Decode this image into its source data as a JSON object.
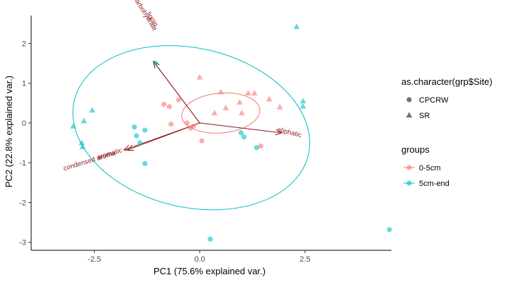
{
  "chart_data": {
    "type": "scatter",
    "xlabel": "PC1 (75.6% explained var.)",
    "ylabel": "PC2 (22.8% explained var.)",
    "xlim": [
      -4.0,
      4.55
    ],
    "ylim": [
      -3.2,
      2.7
    ],
    "x_ticks": [
      -2.5,
      0.0,
      2.5
    ],
    "x_tick_labels": [
      "-2.5",
      "0.0",
      "2.5"
    ],
    "y_ticks": [
      -3,
      -2,
      -1,
      0,
      1,
      2
    ],
    "y_tick_labels": [
      "-3",
      "-2",
      "-1",
      "0",
      "1",
      "2"
    ],
    "grid": false,
    "legend_placement": "right",
    "shape_legend": {
      "title": "as.character(grp$Site)",
      "items": [
        {
          "label": "CPCRW",
          "shape": "circle"
        },
        {
          "label": "SR",
          "shape": "triangle"
        }
      ]
    },
    "group_legend": {
      "title": "groups",
      "items": [
        {
          "label": "0-5cm",
          "color": "#F8766D"
        },
        {
          "label": "5cm-end",
          "color": "#00BFC4"
        }
      ]
    },
    "series": [
      {
        "name": "0-5cm",
        "color": "#F8766D",
        "points": [
          {
            "x": -0.85,
            "y": 0.47,
            "shape": "circle"
          },
          {
            "x": -0.72,
            "y": 0.41,
            "shape": "circle"
          },
          {
            "x": -0.5,
            "y": 0.58,
            "shape": "circle"
          },
          {
            "x": -0.68,
            "y": -0.03,
            "shape": "circle"
          },
          {
            "x": -0.3,
            "y": 0.0,
            "shape": "circle"
          },
          {
            "x": -0.22,
            "y": -0.13,
            "shape": "circle"
          },
          {
            "x": -0.15,
            "y": -0.08,
            "shape": "circle"
          },
          {
            "x": 0.05,
            "y": -0.45,
            "shape": "circle"
          },
          {
            "x": 1.45,
            "y": -0.58,
            "shape": "circle"
          },
          {
            "x": 0.0,
            "y": 1.15,
            "shape": "triangle"
          },
          {
            "x": 0.5,
            "y": 0.78,
            "shape": "triangle"
          },
          {
            "x": 0.62,
            "y": 0.38,
            "shape": "triangle"
          },
          {
            "x": 0.95,
            "y": 0.52,
            "shape": "triangle"
          },
          {
            "x": 1.15,
            "y": 0.75,
            "shape": "triangle"
          },
          {
            "x": 1.3,
            "y": 0.75,
            "shape": "triangle"
          },
          {
            "x": 0.35,
            "y": 0.25,
            "shape": "triangle"
          },
          {
            "x": 1.0,
            "y": 0.25,
            "shape": "triangle"
          },
          {
            "x": 1.65,
            "y": 0.6,
            "shape": "triangle"
          },
          {
            "x": 1.9,
            "y": 0.4,
            "shape": "triangle"
          }
        ]
      },
      {
        "name": "5cm-end",
        "color": "#00BFC4",
        "points": [
          {
            "x": -1.55,
            "y": -0.1,
            "shape": "circle"
          },
          {
            "x": -1.5,
            "y": -0.32,
            "shape": "circle"
          },
          {
            "x": -1.3,
            "y": -0.18,
            "shape": "circle"
          },
          {
            "x": -1.42,
            "y": -0.5,
            "shape": "circle"
          },
          {
            "x": -1.3,
            "y": -1.02,
            "shape": "circle"
          },
          {
            "x": 0.98,
            "y": -0.25,
            "shape": "circle"
          },
          {
            "x": 1.05,
            "y": -0.35,
            "shape": "circle"
          },
          {
            "x": 1.35,
            "y": -0.62,
            "shape": "circle"
          },
          {
            "x": 0.25,
            "y": -2.92,
            "shape": "circle"
          },
          {
            "x": 4.5,
            "y": -2.68,
            "shape": "circle"
          },
          {
            "x": -1.05,
            "y": 1.5,
            "shape": "circle"
          },
          {
            "x": -3.0,
            "y": -0.08,
            "shape": "triangle"
          },
          {
            "x": -2.75,
            "y": 0.05,
            "shape": "triangle"
          },
          {
            "x": -2.55,
            "y": 0.32,
            "shape": "triangle"
          },
          {
            "x": -2.8,
            "y": -0.5,
            "shape": "triangle"
          },
          {
            "x": -2.78,
            "y": -0.6,
            "shape": "triangle"
          },
          {
            "x": 2.3,
            "y": 2.42,
            "shape": "triangle"
          },
          {
            "x": 2.45,
            "y": 0.55,
            "shape": "triangle"
          },
          {
            "x": 2.45,
            "y": 0.42,
            "shape": "triangle"
          }
        ]
      }
    ],
    "ellipses": [
      {
        "group": "0-5cm",
        "color": "#F8766D",
        "cx": 0.5,
        "cy": 0.25,
        "rx": 0.93,
        "ry": 0.5,
        "rotation_deg": -5
      },
      {
        "group": "5cm-end",
        "color": "#00BFC4",
        "cx": -0.2,
        "cy": -0.12,
        "rx": 2.85,
        "ry": 2.0,
        "rotation_deg": 13
      }
    ],
    "loadings": [
      {
        "label": "aliphatic",
        "x": 1.95,
        "y": -0.25
      },
      {
        "label": "aromatic",
        "x": -1.72,
        "y": -0.68
      },
      {
        "label": "condensed aromatic",
        "x": -1.8,
        "y": -0.68
      },
      {
        "label": "carbohydrate",
        "x": -1.1,
        "y": 1.55
      },
      {
        "label": "lignin",
        "x": -1.1,
        "y": 1.55
      }
    ],
    "loading_label_visible": {
      "aliphatic": "aliphatic",
      "aromatic": "aromatic",
      "condensed aromatic": "condensed aroma",
      "carbohydrate": "carbohydrate",
      "lignin": "lignin"
    },
    "loading_color": "#8B1A1A"
  }
}
